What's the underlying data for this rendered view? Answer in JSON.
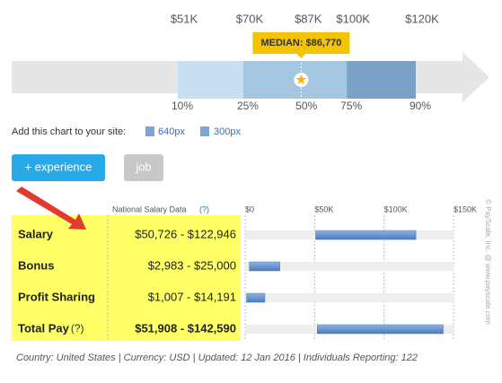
{
  "percentile_chart": {
    "xlim": [
      51000,
      120000
    ],
    "salary_ticks": [
      {
        "value": 51000,
        "label": "$51K"
      },
      {
        "value": 70000,
        "label": "$70K"
      },
      {
        "value": 87000,
        "label": "$87K"
      },
      {
        "value": 100000,
        "label": "$100K"
      },
      {
        "value": 120000,
        "label": "$120K"
      }
    ],
    "bands": [
      {
        "from": 51000,
        "to": 70000,
        "color": "#c6e0f1"
      },
      {
        "from": 70000,
        "to": 100000,
        "color": "#a5c6e0"
      },
      {
        "from": 100000,
        "to": 120000,
        "color": "#7ba2c6"
      }
    ],
    "median": 86770,
    "median_label": "MEDIAN: $86,770",
    "percentile_labels": [
      {
        "text": "10%",
        "at": 51000
      },
      {
        "text": "25%",
        "at": 70000
      },
      {
        "text": "50%",
        "at": 87000
      },
      {
        "text": "75%",
        "at": 100000
      },
      {
        "text": "90%",
        "at": 120000
      }
    ]
  },
  "embed": {
    "text": "Add this chart to your site:",
    "links": [
      "640px",
      "300px"
    ]
  },
  "buttons": [
    "+ experience",
    "job"
  ],
  "table": {
    "header": "National Salary Data",
    "help": "(?)",
    "xlim": [
      0,
      150000
    ],
    "xticks": [
      {
        "value": 0,
        "label": "$0"
      },
      {
        "value": 50000,
        "label": "$50K"
      },
      {
        "value": 100000,
        "label": "$100K"
      },
      {
        "value": 150000,
        "label": "$150K"
      }
    ],
    "rows": [
      {
        "name": "Salary",
        "range": "$50,726 - $122,946",
        "low": 50726,
        "high": 122946
      },
      {
        "name": "Bonus",
        "range": "$2,983 - $25,000",
        "low": 2983,
        "high": 25000
      },
      {
        "name": "Profit Sharing",
        "range": "$1,007 - $14,191",
        "low": 1007,
        "high": 14191
      },
      {
        "name": "Total Pay",
        "help": "(?)",
        "range": "$51,908 - $142,590",
        "low": 51908,
        "high": 142590
      }
    ]
  },
  "footer": "Country: United States | Currency: USD | Updated: 12 Jan 2016 | Individuals Reporting: 122",
  "watermark": "© PayScale, Inc. @ www.payscale.com"
}
